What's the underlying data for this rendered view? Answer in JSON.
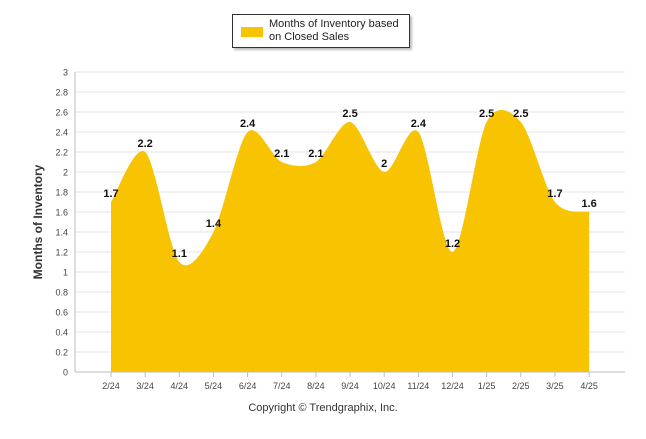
{
  "chart_data": {
    "type": "area",
    "categories": [
      "2/24",
      "3/24",
      "4/24",
      "5/24",
      "6/24",
      "7/24",
      "8/24",
      "9/24",
      "10/24",
      "11/24",
      "12/24",
      "1/25",
      "2/25",
      "3/25",
      "4/25"
    ],
    "series": [
      {
        "name": "Months of Inventory based on Closed Sales",
        "values": [
          1.7,
          2.2,
          1.1,
          1.4,
          2.4,
          2.1,
          2.1,
          2.5,
          2.0,
          2.4,
          1.2,
          2.5,
          2.5,
          1.7,
          1.6
        ],
        "data_labels": [
          "1.7",
          "2.2",
          "1.1",
          "1.4",
          "2.4",
          "2.1",
          "2.1",
          "2.5",
          "2",
          "2.4",
          "1.2",
          "2.5",
          "2.5",
          "1.7",
          "1.6"
        ],
        "color": "#F8C300"
      }
    ],
    "title": "",
    "xlabel": "",
    "ylabel": "Months of Inventory",
    "ylim": [
      0,
      3
    ],
    "yticks": [
      "0",
      "0.2",
      "0.4",
      "0.6",
      "0.8",
      "1",
      "1.2",
      "1.4",
      "1.6",
      "1.8",
      "2",
      "2.2",
      "2.4",
      "2.6",
      "2.8",
      "3"
    ],
    "grid": true,
    "legend": "top-center"
  },
  "legend": {
    "label": "Months of Inventory based on Closed Sales"
  },
  "footer": "Copyright © Trendgraphix, Inc."
}
